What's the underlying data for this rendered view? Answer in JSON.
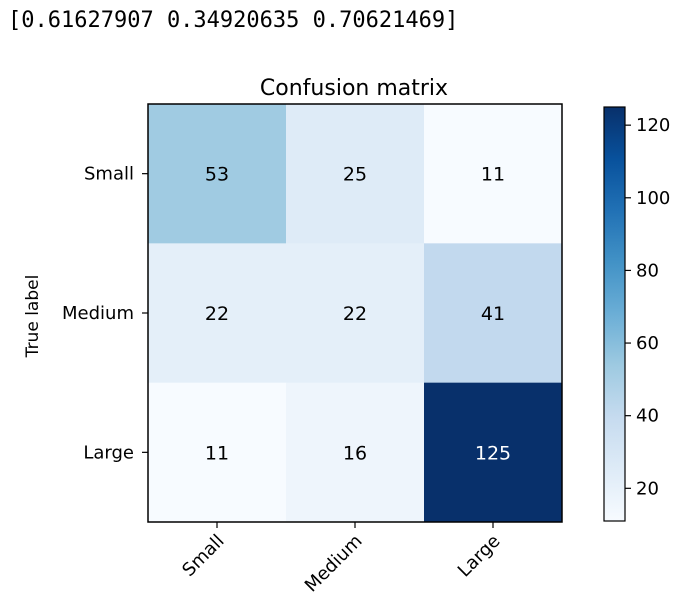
{
  "output": {
    "text": "[0.61627907 0.34920635 0.70621469]"
  },
  "chart_data": {
    "type": "heatmap",
    "title": "Confusion matrix",
    "ylabel": "True label",
    "xlabel": "",
    "x_categories": [
      "Small",
      "Medium",
      "Large"
    ],
    "y_categories": [
      "Small",
      "Medium",
      "Large"
    ],
    "values": [
      [
        53,
        25,
        11
      ],
      [
        22,
        22,
        41
      ],
      [
        11,
        16,
        125
      ]
    ],
    "colormap": "Blues",
    "colorbar": {
      "range": [
        11,
        125
      ],
      "ticks": [
        20,
        40,
        60,
        80,
        100,
        120
      ]
    },
    "colors": {
      "text_dark": "#000000",
      "text_light": "#ffffff"
    }
  }
}
